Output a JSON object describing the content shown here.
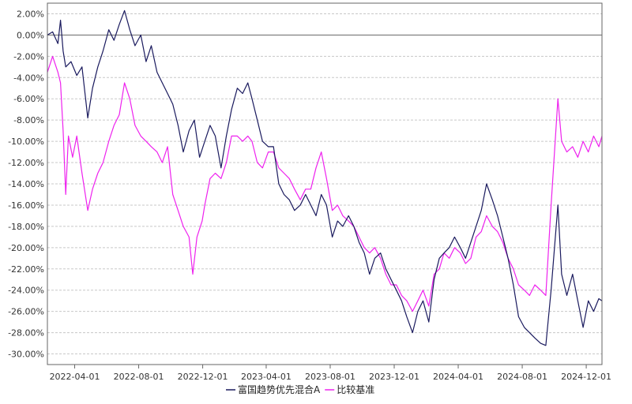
{
  "chart_data": {
    "type": "line",
    "title": "",
    "xlabel": "",
    "ylabel": "",
    "ylim": [
      -31,
      3
    ],
    "y_ticks": [
      2,
      0,
      -2,
      -4,
      -6,
      -8,
      -10,
      -12,
      -14,
      -16,
      -18,
      -20,
      -22,
      -24,
      -26,
      -28,
      -30
    ],
    "y_tick_labels": [
      "2.00%",
      "0.00%",
      "-2.00%",
      "-4.00%",
      "-6.00%",
      "-8.00%",
      "-10.00%",
      "-12.00%",
      "-14.00%",
      "-16.00%",
      "-18.00%",
      "-20.00%",
      "-22.00%",
      "-24.00%",
      "-26.00%",
      "-28.00%",
      "-30.00%"
    ],
    "x_ticks": [
      "2022-04-01",
      "2022-08-01",
      "2022-12-01",
      "2023-04-01",
      "2023-08-01",
      "2023-12-01",
      "2024-04-01",
      "2024-08-01",
      "2024-12-01"
    ],
    "xlim": [
      "2022-02-08",
      "2024-12-31"
    ],
    "grid": true,
    "legend_position": "bottom",
    "series": [
      {
        "name": "富国趋势优先混合A",
        "color": "#1a1a5e",
        "points": [
          [
            "2022-02-08",
            0.0
          ],
          [
            "2022-02-18",
            0.3
          ],
          [
            "2022-02-28",
            -0.8
          ],
          [
            "2022-03-05",
            1.4
          ],
          [
            "2022-03-10",
            -1.5
          ],
          [
            "2022-03-15",
            -3.0
          ],
          [
            "2022-03-25",
            -2.5
          ],
          [
            "2022-04-05",
            -3.8
          ],
          [
            "2022-04-15",
            -3.0
          ],
          [
            "2022-04-26",
            -7.8
          ],
          [
            "2022-05-05",
            -5.0
          ],
          [
            "2022-05-15",
            -3.0
          ],
          [
            "2022-05-25",
            -1.5
          ],
          [
            "2022-06-05",
            0.5
          ],
          [
            "2022-06-15",
            -0.5
          ],
          [
            "2022-06-25",
            1.0
          ],
          [
            "2022-07-05",
            2.3
          ],
          [
            "2022-07-15",
            0.5
          ],
          [
            "2022-07-25",
            -1.0
          ],
          [
            "2022-08-05",
            0.0
          ],
          [
            "2022-08-15",
            -2.5
          ],
          [
            "2022-08-25",
            -1.0
          ],
          [
            "2022-09-05",
            -3.5
          ],
          [
            "2022-09-15",
            -4.5
          ],
          [
            "2022-09-25",
            -5.5
          ],
          [
            "2022-10-05",
            -6.5
          ],
          [
            "2022-10-15",
            -8.5
          ],
          [
            "2022-10-25",
            -11.0
          ],
          [
            "2022-11-05",
            -9.0
          ],
          [
            "2022-11-15",
            -8.0
          ],
          [
            "2022-11-25",
            -11.5
          ],
          [
            "2022-12-05",
            -10.0
          ],
          [
            "2022-12-15",
            -8.5
          ],
          [
            "2022-12-25",
            -9.5
          ],
          [
            "2023-01-05",
            -12.5
          ],
          [
            "2023-01-15",
            -9.5
          ],
          [
            "2023-01-25",
            -7.0
          ],
          [
            "2023-02-05",
            -5.0
          ],
          [
            "2023-02-15",
            -5.5
          ],
          [
            "2023-02-25",
            -4.5
          ],
          [
            "2023-03-05",
            -6.0
          ],
          [
            "2023-03-15",
            -8.0
          ],
          [
            "2023-03-25",
            -10.0
          ],
          [
            "2023-04-05",
            -10.5
          ],
          [
            "2023-04-15",
            -10.5
          ],
          [
            "2023-04-25",
            -14.0
          ],
          [
            "2023-05-05",
            -15.0
          ],
          [
            "2023-05-15",
            -15.5
          ],
          [
            "2023-05-25",
            -16.5
          ],
          [
            "2023-06-05",
            -16.0
          ],
          [
            "2023-06-15",
            -15.0
          ],
          [
            "2023-06-25",
            -16.0
          ],
          [
            "2023-07-05",
            -17.0
          ],
          [
            "2023-07-15",
            -15.0
          ],
          [
            "2023-07-25",
            -16.0
          ],
          [
            "2023-08-05",
            -19.0
          ],
          [
            "2023-08-15",
            -17.5
          ],
          [
            "2023-08-25",
            -18.0
          ],
          [
            "2023-09-05",
            -17.0
          ],
          [
            "2023-09-15",
            -18.0
          ],
          [
            "2023-09-25",
            -19.5
          ],
          [
            "2023-10-05",
            -20.5
          ],
          [
            "2023-10-15",
            -22.5
          ],
          [
            "2023-10-25",
            -21.0
          ],
          [
            "2023-11-05",
            -20.5
          ],
          [
            "2023-11-15",
            -22.0
          ],
          [
            "2023-11-25",
            -23.0
          ],
          [
            "2023-12-05",
            -24.0
          ],
          [
            "2023-12-15",
            -25.0
          ],
          [
            "2023-12-25",
            -26.5
          ],
          [
            "2024-01-05",
            -28.0
          ],
          [
            "2024-01-15",
            -26.0
          ],
          [
            "2024-01-25",
            -25.0
          ],
          [
            "2024-02-05",
            -27.0
          ],
          [
            "2024-02-15",
            -23.0
          ],
          [
            "2024-02-25",
            -21.0
          ],
          [
            "2024-03-05",
            -20.5
          ],
          [
            "2024-03-15",
            -20.0
          ],
          [
            "2024-03-25",
            -19.0
          ],
          [
            "2024-04-05",
            -20.0
          ],
          [
            "2024-04-15",
            -21.0
          ],
          [
            "2024-04-25",
            -19.5
          ],
          [
            "2024-05-05",
            -18.0
          ],
          [
            "2024-05-15",
            -16.5
          ],
          [
            "2024-05-25",
            -14.0
          ],
          [
            "2024-06-05",
            -15.5
          ],
          [
            "2024-06-15",
            -17.0
          ],
          [
            "2024-06-25",
            -19.0
          ],
          [
            "2024-07-05",
            -21.0
          ],
          [
            "2024-07-15",
            -23.5
          ],
          [
            "2024-07-25",
            -26.5
          ],
          [
            "2024-08-05",
            -27.5
          ],
          [
            "2024-08-15",
            -28.0
          ],
          [
            "2024-08-25",
            -28.5
          ],
          [
            "2024-09-05",
            -29.0
          ],
          [
            "2024-09-15",
            -29.2
          ],
          [
            "2024-09-25",
            -24.0
          ],
          [
            "2024-10-08",
            -16.0
          ],
          [
            "2024-10-15",
            -22.5
          ],
          [
            "2024-10-25",
            -24.5
          ],
          [
            "2024-11-05",
            -22.5
          ],
          [
            "2024-11-15",
            -25.0
          ],
          [
            "2024-11-25",
            -27.5
          ],
          [
            "2024-12-05",
            -25.0
          ],
          [
            "2024-12-15",
            -26.0
          ],
          [
            "2024-12-25",
            -24.8
          ],
          [
            "2024-12-31",
            -25.0
          ]
        ]
      },
      {
        "name": "比较基准",
        "color": "#ee22ee",
        "points": [
          [
            "2022-02-08",
            -3.5
          ],
          [
            "2022-02-18",
            -2.0
          ],
          [
            "2022-02-28",
            -3.5
          ],
          [
            "2022-03-05",
            -4.5
          ],
          [
            "2022-03-10",
            -9.0
          ],
          [
            "2022-03-15",
            -15.0
          ],
          [
            "2022-03-20",
            -9.5
          ],
          [
            "2022-03-28",
            -11.5
          ],
          [
            "2022-04-05",
            -9.5
          ],
          [
            "2022-04-15",
            -13.0
          ],
          [
            "2022-04-26",
            -16.5
          ],
          [
            "2022-05-05",
            -14.5
          ],
          [
            "2022-05-15",
            -13.0
          ],
          [
            "2022-05-25",
            -12.0
          ],
          [
            "2022-06-05",
            -10.0
          ],
          [
            "2022-06-15",
            -8.5
          ],
          [
            "2022-06-25",
            -7.5
          ],
          [
            "2022-07-05",
            -4.5
          ],
          [
            "2022-07-15",
            -6.0
          ],
          [
            "2022-07-25",
            -8.5
          ],
          [
            "2022-08-05",
            -9.5
          ],
          [
            "2022-08-15",
            -10.0
          ],
          [
            "2022-08-25",
            -10.5
          ],
          [
            "2022-09-05",
            -11.0
          ],
          [
            "2022-09-15",
            -12.0
          ],
          [
            "2022-09-25",
            -10.5
          ],
          [
            "2022-10-05",
            -15.0
          ],
          [
            "2022-10-15",
            -16.5
          ],
          [
            "2022-10-25",
            -18.0
          ],
          [
            "2022-11-05",
            -19.0
          ],
          [
            "2022-11-12",
            -22.5
          ],
          [
            "2022-11-20",
            -19.0
          ],
          [
            "2022-11-30",
            -17.5
          ],
          [
            "2022-12-05",
            -16.0
          ],
          [
            "2022-12-15",
            -13.5
          ],
          [
            "2022-12-25",
            -13.0
          ],
          [
            "2023-01-05",
            -13.5
          ],
          [
            "2023-01-15",
            -12.0
          ],
          [
            "2023-01-25",
            -9.5
          ],
          [
            "2023-02-05",
            -9.5
          ],
          [
            "2023-02-15",
            -10.0
          ],
          [
            "2023-02-25",
            -9.5
          ],
          [
            "2023-03-05",
            -10.0
          ],
          [
            "2023-03-15",
            -12.0
          ],
          [
            "2023-03-25",
            -12.5
          ],
          [
            "2023-04-05",
            -11.0
          ],
          [
            "2023-04-15",
            -11.0
          ],
          [
            "2023-04-25",
            -12.5
          ],
          [
            "2023-05-05",
            -13.0
          ],
          [
            "2023-05-15",
            -13.5
          ],
          [
            "2023-05-25",
            -14.5
          ],
          [
            "2023-06-05",
            -15.5
          ],
          [
            "2023-06-15",
            -14.5
          ],
          [
            "2023-06-25",
            -14.5
          ],
          [
            "2023-07-05",
            -12.5
          ],
          [
            "2023-07-15",
            -11.0
          ],
          [
            "2023-07-25",
            -13.5
          ],
          [
            "2023-08-05",
            -16.5
          ],
          [
            "2023-08-15",
            -16.0
          ],
          [
            "2023-08-25",
            -17.0
          ],
          [
            "2023-09-05",
            -17.5
          ],
          [
            "2023-09-15",
            -18.0
          ],
          [
            "2023-09-25",
            -19.0
          ],
          [
            "2023-10-05",
            -20.0
          ],
          [
            "2023-10-15",
            -20.5
          ],
          [
            "2023-10-25",
            -20.0
          ],
          [
            "2023-11-05",
            -21.0
          ],
          [
            "2023-11-15",
            -22.5
          ],
          [
            "2023-11-25",
            -23.5
          ],
          [
            "2023-12-05",
            -23.5
          ],
          [
            "2023-12-15",
            -24.5
          ],
          [
            "2023-12-25",
            -25.0
          ],
          [
            "2024-01-05",
            -26.0
          ],
          [
            "2024-01-15",
            -25.0
          ],
          [
            "2024-01-25",
            -24.0
          ],
          [
            "2024-02-05",
            -25.5
          ],
          [
            "2024-02-15",
            -22.5
          ],
          [
            "2024-02-25",
            -22.0
          ],
          [
            "2024-03-05",
            -20.5
          ],
          [
            "2024-03-15",
            -21.0
          ],
          [
            "2024-03-25",
            -20.0
          ],
          [
            "2024-04-05",
            -20.5
          ],
          [
            "2024-04-15",
            -21.5
          ],
          [
            "2024-04-25",
            -21.0
          ],
          [
            "2024-05-05",
            -19.0
          ],
          [
            "2024-05-15",
            -18.5
          ],
          [
            "2024-05-25",
            -17.0
          ],
          [
            "2024-06-05",
            -18.0
          ],
          [
            "2024-06-15",
            -18.5
          ],
          [
            "2024-06-25",
            -19.5
          ],
          [
            "2024-07-05",
            -21.0
          ],
          [
            "2024-07-15",
            -22.0
          ],
          [
            "2024-07-25",
            -23.5
          ],
          [
            "2024-08-05",
            -24.0
          ],
          [
            "2024-08-15",
            -24.5
          ],
          [
            "2024-08-25",
            -23.5
          ],
          [
            "2024-09-05",
            -24.0
          ],
          [
            "2024-09-15",
            -24.5
          ],
          [
            "2024-09-25",
            -16.0
          ],
          [
            "2024-10-08",
            -6.0
          ],
          [
            "2024-10-15",
            -10.0
          ],
          [
            "2024-10-25",
            -11.0
          ],
          [
            "2024-11-05",
            -10.5
          ],
          [
            "2024-11-15",
            -11.5
          ],
          [
            "2024-11-25",
            -10.0
          ],
          [
            "2024-12-05",
            -11.0
          ],
          [
            "2024-12-15",
            -9.5
          ],
          [
            "2024-12-25",
            -10.5
          ],
          [
            "2024-12-31",
            -9.5
          ]
        ]
      }
    ]
  }
}
